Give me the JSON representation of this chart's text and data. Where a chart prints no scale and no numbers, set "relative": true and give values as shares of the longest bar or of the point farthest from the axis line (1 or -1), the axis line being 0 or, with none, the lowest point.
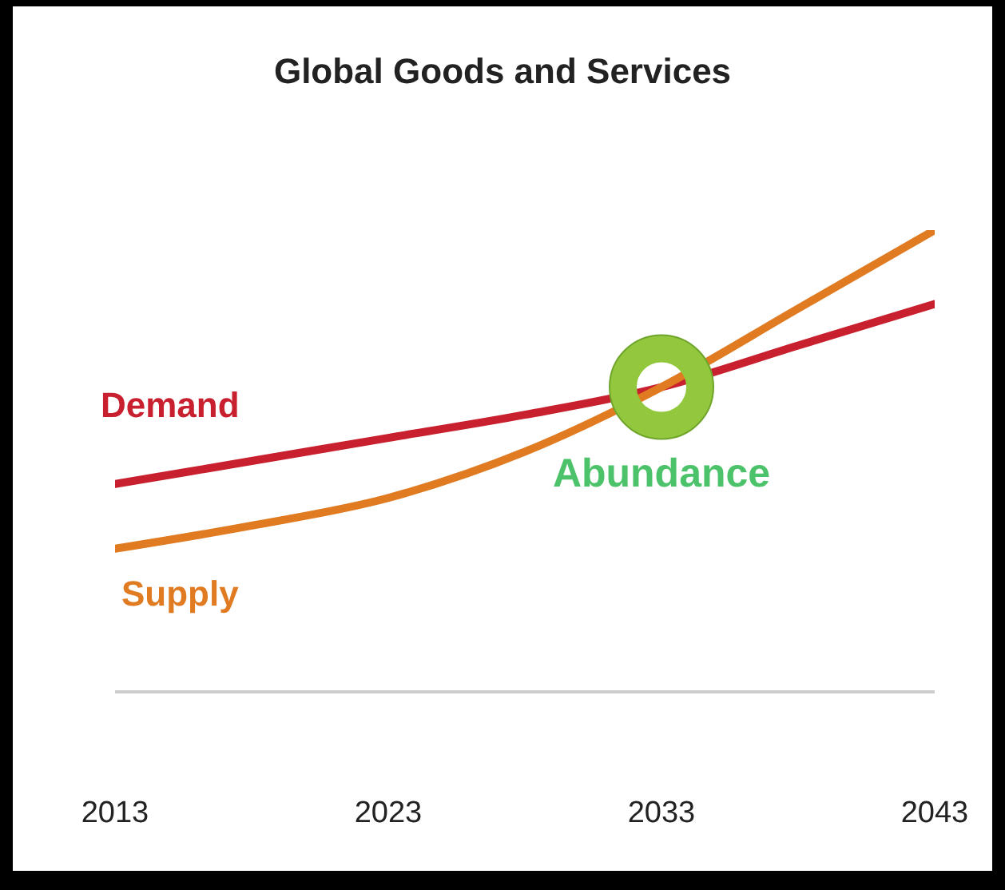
{
  "chart_data": {
    "type": "line",
    "title": "Global Goods and Services",
    "relative": true,
    "x": [
      2013,
      2018,
      2023,
      2028,
      2033,
      2038,
      2043
    ],
    "xlim": [
      2013,
      2043
    ],
    "xticks": [
      2013,
      2023,
      2033,
      2043
    ],
    "grid": false,
    "legend": false,
    "series": [
      {
        "name": "Demand",
        "color": "#c8202e",
        "values": [
          0.45,
          0.5,
          0.55,
          0.6,
          0.66,
          0.75,
          0.84
        ]
      },
      {
        "name": "Supply",
        "color": "#e07b22",
        "values": [
          0.31,
          0.36,
          0.42,
          0.52,
          0.66,
          0.83,
          1
        ]
      }
    ],
    "annotations": [
      {
        "text": "Abundance",
        "x": 2033,
        "y": 0.66
      }
    ]
  }
}
